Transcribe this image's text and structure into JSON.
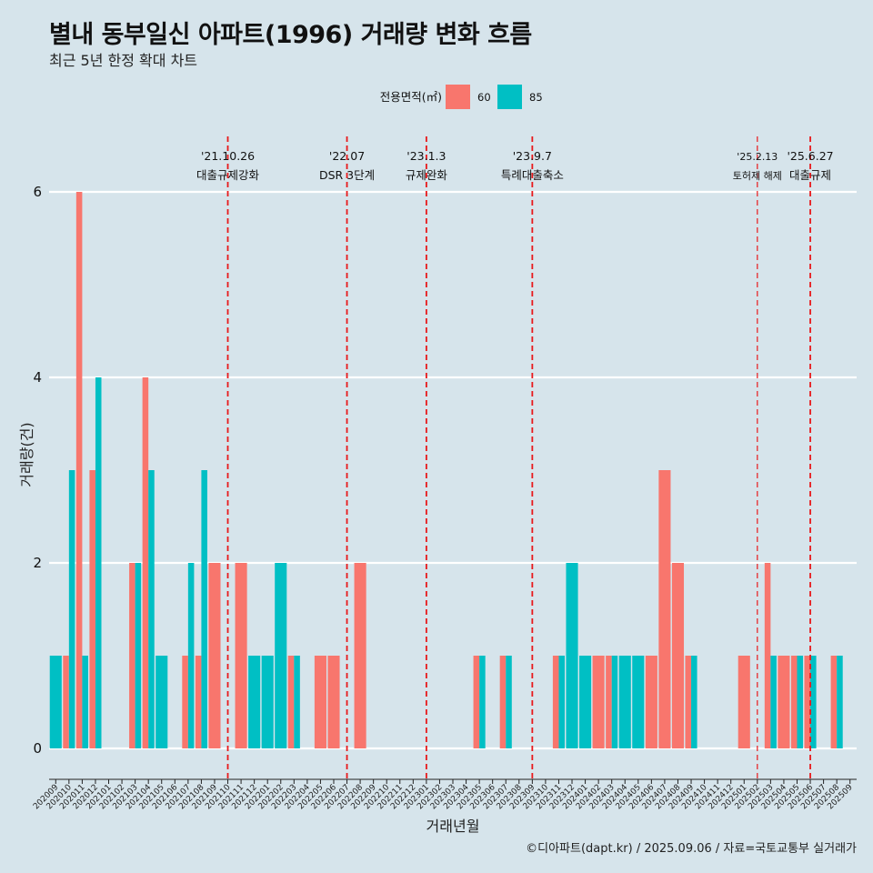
{
  "title": "별내 동부일신 아파트(1996) 거래량 변화 흐름",
  "subtitle": "최근 5년 한정 확대 차트",
  "caption": "©디아파트(dapt.kr) / 2025.09.06 / 자료=국토교통부 실거래가",
  "colors": {
    "s60": "#f8766d",
    "s85": "#00bfc4",
    "bg": "#d6e4eb",
    "grid": "#ffffff",
    "event": "#e8191b"
  },
  "chart_data": {
    "type": "bar",
    "title": "별내 동부일신 아파트(1996) 거래량 변화 흐름",
    "xlabel": "거래년월",
    "ylabel": "거래량(건)",
    "ylim": [
      0,
      6
    ],
    "yticks": [
      "0",
      "2",
      "4",
      "6"
    ],
    "legend": {
      "title": "전용면적(㎡)",
      "position": "top"
    },
    "categories": [
      "202009",
      "202010",
      "202011",
      "202012",
      "202101",
      "202102",
      "202103",
      "202104",
      "202105",
      "202106",
      "202107",
      "202108",
      "202109",
      "202110",
      "202111",
      "202112",
      "202201",
      "202202",
      "202203",
      "202204",
      "202205",
      "202206",
      "202207",
      "202208",
      "202209",
      "202210",
      "202211",
      "202212",
      "202301",
      "202302",
      "202303",
      "202304",
      "202305",
      "202306",
      "202307",
      "202308",
      "202309",
      "202310",
      "202311",
      "202312",
      "202401",
      "202402",
      "202403",
      "202404",
      "202405",
      "202406",
      "202407",
      "202408",
      "202409",
      "202410",
      "202411",
      "202412",
      "202501",
      "202502",
      "202503",
      "202504",
      "202505",
      "202506",
      "202507",
      "202508",
      "202509"
    ],
    "series": [
      {
        "name": "60",
        "values": [
          0,
          1,
          6,
          3,
          0,
          0,
          2,
          4,
          0,
          0,
          1,
          1,
          2,
          0,
          2,
          0,
          0,
          0,
          1,
          0,
          1,
          1,
          0,
          2,
          0,
          0,
          0,
          0,
          0,
          0,
          0,
          0,
          1,
          0,
          1,
          0,
          0,
          0,
          1,
          0,
          0,
          1,
          1,
          0,
          0,
          1,
          3,
          2,
          1,
          0,
          0,
          0,
          1,
          0,
          2,
          1,
          1,
          1,
          0,
          1,
          0
        ]
      },
      {
        "name": "85",
        "values": [
          1,
          3,
          1,
          4,
          0,
          0,
          2,
          3,
          1,
          0,
          2,
          3,
          0,
          0,
          0,
          1,
          1,
          2,
          1,
          0,
          0,
          0,
          0,
          0,
          0,
          0,
          0,
          0,
          0,
          0,
          0,
          0,
          1,
          0,
          1,
          0,
          0,
          0,
          1,
          2,
          1,
          0,
          1,
          1,
          1,
          0,
          0,
          0,
          1,
          0,
          0,
          0,
          0,
          0,
          1,
          0,
          1,
          1,
          0,
          1,
          0
        ]
      }
    ],
    "events": [
      {
        "date_line1": "'21.10.26",
        "date_line2": "대출규제강화",
        "month": "202110"
      },
      {
        "date_line1": "'22.07",
        "date_line2": "DSR 3단계",
        "month": "202207"
      },
      {
        "date_line1": "'23.1.3",
        "date_line2": "규제완화",
        "month": "202301"
      },
      {
        "date_line1": "'23.9.7",
        "date_line2": "특례대출축소",
        "month": "202309"
      },
      {
        "date_line1": "'25.2.13",
        "date_line2": "토허제 해제",
        "month": "202502"
      },
      {
        "date_line1": "'25.6.27",
        "date_line2": "대출규제",
        "month": "202506"
      }
    ]
  }
}
